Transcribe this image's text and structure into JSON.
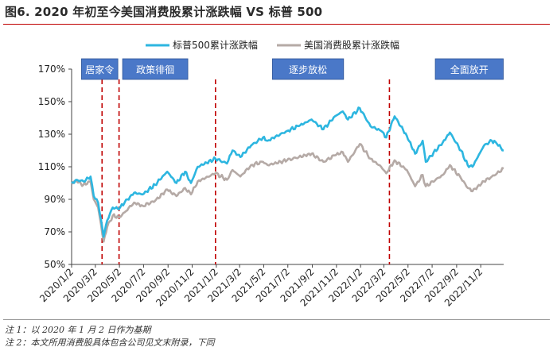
{
  "figure_title": "图6. 2020 年初至今美国消费股累计涨跌幅 VS 标普 500",
  "notes": [
    "注 1：以 2020 年 1 月 2 日作为基期",
    "注 2：本文所用消费股具体包含公司见文末附录，下同"
  ],
  "colors": {
    "series1": "#2db6e0",
    "series2": "#b5aaa6",
    "event_line": "#c00000",
    "event_box": "#4a78c8",
    "rule": "#c00000"
  },
  "chart_data": {
    "type": "line",
    "title": "",
    "xlabel": "",
    "ylabel": "",
    "ylim": [
      50,
      170
    ],
    "yticks": [
      50,
      70,
      90,
      110,
      130,
      150,
      170
    ],
    "ytick_labels": [
      "50%",
      "70%",
      "90%",
      "110%",
      "130%",
      "150%",
      "170%"
    ],
    "xticks": [
      "2020/1/2",
      "2020/3/2",
      "2020/5/2",
      "2020/7/2",
      "2020/9/2",
      "2020/11/2",
      "2021/1/2",
      "2021/3/2",
      "2021/5/2",
      "2021/7/2",
      "2021/9/2",
      "2021/11/2",
      "2022/1/2",
      "2022/3/2",
      "2022/5/2",
      "2022/7/2",
      "2022/9/2",
      "2022/11/2"
    ],
    "x_end": "2022/12/30",
    "legend_position": "top",
    "series": [
      {
        "name": "标普500累计涨跌幅",
        "points": [
          [
            "2020/1/2",
            100
          ],
          [
            "2020/1/15",
            102
          ],
          [
            "2020/2/1",
            101
          ],
          [
            "2020/2/19",
            104
          ],
          [
            "2020/2/27",
            92
          ],
          [
            "2020/3/9",
            88
          ],
          [
            "2020/3/16",
            78
          ],
          [
            "2020/3/23",
            67
          ],
          [
            "2020/4/1",
            77
          ],
          [
            "2020/4/15",
            85
          ],
          [
            "2020/5/1",
            84
          ],
          [
            "2020/5/15",
            88
          ],
          [
            "2020/6/8",
            94
          ],
          [
            "2020/6/30",
            93
          ],
          [
            "2020/7/31",
            99
          ],
          [
            "2020/8/31",
            107
          ],
          [
            "2020/9/23",
            100
          ],
          [
            "2020/10/15",
            107
          ],
          [
            "2020/10/30",
            100
          ],
          [
            "2020/11/16",
            110
          ],
          [
            "2020/12/31",
            115
          ],
          [
            "2021/1/29",
            112
          ],
          [
            "2021/2/12",
            120
          ],
          [
            "2021/3/4",
            116
          ],
          [
            "2021/3/31",
            123
          ],
          [
            "2021/4/30",
            128
          ],
          [
            "2021/5/12",
            126
          ],
          [
            "2021/6/30",
            132
          ],
          [
            "2021/7/30",
            135
          ],
          [
            "2021/8/31",
            139
          ],
          [
            "2021/9/30",
            133
          ],
          [
            "2021/10/29",
            141
          ],
          [
            "2021/11/18",
            144
          ],
          [
            "2021/12/1",
            139
          ],
          [
            "2021/12/31",
            146
          ],
          [
            "2022/1/27",
            135
          ],
          [
            "2022/2/23",
            132
          ],
          [
            "2022/3/8",
            128
          ],
          [
            "2022/3/29",
            141
          ],
          [
            "2022/4/29",
            129
          ],
          [
            "2022/5/20",
            118
          ],
          [
            "2022/6/8",
            126
          ],
          [
            "2022/6/16",
            113
          ],
          [
            "2022/7/29",
            125
          ],
          [
            "2022/8/16",
            131
          ],
          [
            "2022/9/13",
            120
          ],
          [
            "2022/9/30",
            111
          ],
          [
            "2022/10/12",
            110
          ],
          [
            "2022/11/10",
            123
          ],
          [
            "2022/11/30",
            126
          ],
          [
            "2022/12/13",
            124
          ],
          [
            "2022/12/30",
            120
          ]
        ]
      },
      {
        "name": "美国消费股累计涨跌幅",
        "points": [
          [
            "2020/1/2",
            100
          ],
          [
            "2020/1/15",
            101
          ],
          [
            "2020/2/1",
            99
          ],
          [
            "2020/2/19",
            101
          ],
          [
            "2020/2/27",
            90
          ],
          [
            "2020/3/9",
            85
          ],
          [
            "2020/3/16",
            75
          ],
          [
            "2020/3/23",
            64
          ],
          [
            "2020/4/1",
            73
          ],
          [
            "2020/4/15",
            80
          ],
          [
            "2020/5/1",
            79
          ],
          [
            "2020/5/15",
            82
          ],
          [
            "2020/6/8",
            88
          ],
          [
            "2020/6/30",
            86
          ],
          [
            "2020/7/31",
            89
          ],
          [
            "2020/8/31",
            96
          ],
          [
            "2020/9/23",
            92
          ],
          [
            "2020/10/15",
            97
          ],
          [
            "2020/10/30",
            93
          ],
          [
            "2020/11/16",
            101
          ],
          [
            "2020/12/31",
            106
          ],
          [
            "2021/1/29",
            102
          ],
          [
            "2021/2/12",
            108
          ],
          [
            "2021/3/4",
            104
          ],
          [
            "2021/3/31",
            111
          ],
          [
            "2021/4/30",
            113
          ],
          [
            "2021/5/12",
            111
          ],
          [
            "2021/6/30",
            114
          ],
          [
            "2021/7/30",
            116
          ],
          [
            "2021/8/31",
            118
          ],
          [
            "2021/9/30",
            113
          ],
          [
            "2021/10/29",
            117
          ],
          [
            "2021/11/18",
            119
          ],
          [
            "2021/12/1",
            113
          ],
          [
            "2021/12/31",
            124
          ],
          [
            "2022/1/27",
            115
          ],
          [
            "2022/2/23",
            110
          ],
          [
            "2022/3/8",
            106
          ],
          [
            "2022/3/29",
            114
          ],
          [
            "2022/4/29",
            108
          ],
          [
            "2022/5/20",
            98
          ],
          [
            "2022/6/8",
            105
          ],
          [
            "2022/6/16",
            98
          ],
          [
            "2022/7/29",
            105
          ],
          [
            "2022/8/16",
            111
          ],
          [
            "2022/9/13",
            103
          ],
          [
            "2022/9/30",
            97
          ],
          [
            "2022/10/12",
            95
          ],
          [
            "2022/11/10",
            101
          ],
          [
            "2022/11/30",
            104
          ],
          [
            "2022/12/13",
            106
          ],
          [
            "2022/12/30",
            109
          ]
        ]
      }
    ],
    "events": [
      {
        "label": "居家令",
        "start": "2020/3/19",
        "end": "2020/5/1"
      },
      {
        "label": "政策徘徊",
        "end": "2020/12/31"
      },
      {
        "label": "逐步放松",
        "end": "2022/3/16"
      },
      {
        "label": "全面放开"
      }
    ],
    "event_boxes": [
      {
        "label": "居家令",
        "from": "2020/1/27",
        "to": "2020/4/28"
      },
      {
        "label": "政策徘徊",
        "from": "2020/5/10",
        "to": "2020/10/22"
      },
      {
        "label": "逐步放松",
        "from": "2021/5/24",
        "to": "2021/11/20"
      },
      {
        "label": "全面放开",
        "from": "2022/7/10",
        "to": "2022/12/29"
      }
    ],
    "event_lines": [
      "2020/3/19",
      "2020/5/1",
      "2020/12/31",
      "2022/3/16"
    ]
  }
}
